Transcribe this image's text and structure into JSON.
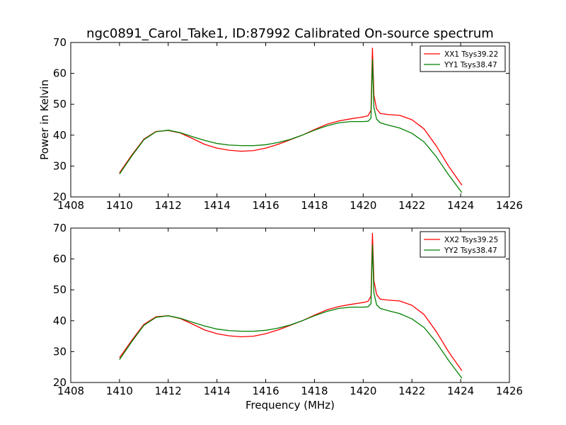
{
  "chart_data": [
    {
      "type": "line",
      "title": "ngc0891_Carol_Take1, ID:87992 Calibrated On-source spectrum",
      "xlabel": "",
      "ylabel": "Power in Kelvin",
      "xlim": [
        1408,
        1426
      ],
      "ylim": [
        20,
        70
      ],
      "xticks": [
        1408,
        1410,
        1412,
        1414,
        1416,
        1418,
        1420,
        1422,
        1424,
        1426
      ],
      "yticks": [
        20,
        30,
        40,
        50,
        60,
        70
      ],
      "legend_position": "top-right",
      "grid": false,
      "series": [
        {
          "name": "XX1 Tsys39.22",
          "color": "#ff0000",
          "x": [
            1410,
            1410.5,
            1411,
            1411.5,
            1412,
            1412.5,
            1413,
            1413.5,
            1414,
            1414.5,
            1415,
            1415.5,
            1416,
            1416.5,
            1417,
            1417.5,
            1418,
            1418.5,
            1419,
            1419.5,
            1420,
            1420.2,
            1420.32,
            1420.38,
            1420.44,
            1420.55,
            1420.7,
            1421,
            1421.5,
            1422,
            1422.5,
            1423,
            1423.5,
            1424.05
          ],
          "y": [
            27.8,
            33.5,
            38.7,
            41.2,
            41.5,
            40.7,
            38.9,
            37.0,
            35.8,
            35.1,
            34.8,
            35.0,
            35.8,
            37.0,
            38.5,
            40.0,
            41.8,
            43.5,
            44.6,
            45.3,
            45.9,
            46.3,
            48.0,
            68.2,
            53.0,
            48.5,
            47.0,
            46.7,
            46.4,
            45.0,
            42.0,
            36.5,
            30.0,
            23.8
          ]
        },
        {
          "name": "YY1 Tsys38.47",
          "color": "#008000",
          "x": [
            1410,
            1410.5,
            1411,
            1411.5,
            1412,
            1412.5,
            1413,
            1413.5,
            1414,
            1414.5,
            1415,
            1415.5,
            1416,
            1416.5,
            1417,
            1417.5,
            1418,
            1418.5,
            1419,
            1419.5,
            1420,
            1420.2,
            1420.32,
            1420.38,
            1420.44,
            1420.55,
            1420.7,
            1421,
            1421.5,
            1422,
            1422.5,
            1423,
            1423.5,
            1424.05
          ],
          "y": [
            27.4,
            33.2,
            38.5,
            41.1,
            41.6,
            40.8,
            39.5,
            38.3,
            37.3,
            36.8,
            36.6,
            36.6,
            36.9,
            37.6,
            38.6,
            40.0,
            41.6,
            43.0,
            44.0,
            44.4,
            44.4,
            44.5,
            45.5,
            64.5,
            49.0,
            45.2,
            44.0,
            43.3,
            42.3,
            40.6,
            37.8,
            33.0,
            27.2,
            21.4
          ]
        }
      ]
    },
    {
      "type": "line",
      "title": "",
      "xlabel": "Frequency (MHz)",
      "ylabel": "",
      "xlim": [
        1408,
        1426
      ],
      "ylim": [
        20,
        70
      ],
      "xticks": [
        1408,
        1410,
        1412,
        1414,
        1416,
        1418,
        1420,
        1422,
        1424,
        1426
      ],
      "yticks": [
        20,
        30,
        40,
        50,
        60,
        70
      ],
      "legend_position": "top-right",
      "grid": false,
      "series": [
        {
          "name": "XX2 Tsys39.25",
          "color": "#ff0000",
          "x": [
            1410,
            1410.5,
            1411,
            1411.5,
            1412,
            1412.5,
            1413,
            1413.5,
            1414,
            1414.5,
            1415,
            1415.5,
            1416,
            1416.5,
            1417,
            1417.5,
            1418,
            1418.5,
            1419,
            1419.5,
            1420,
            1420.2,
            1420.32,
            1420.38,
            1420.44,
            1420.55,
            1420.7,
            1421,
            1421.5,
            1422,
            1422.5,
            1423,
            1423.5,
            1424.05
          ],
          "y": [
            28.0,
            33.6,
            38.8,
            41.3,
            41.6,
            40.7,
            38.9,
            37.0,
            35.8,
            35.1,
            34.8,
            35.0,
            35.8,
            37.0,
            38.5,
            40.0,
            41.8,
            43.5,
            44.6,
            45.3,
            45.9,
            46.3,
            48.0,
            68.3,
            53.0,
            48.5,
            47.0,
            46.7,
            46.4,
            45.0,
            42.0,
            36.5,
            30.0,
            23.8
          ]
        },
        {
          "name": "YY2 Tsys38.47",
          "color": "#008000",
          "x": [
            1410,
            1410.5,
            1411,
            1411.5,
            1412,
            1412.5,
            1413,
            1413.5,
            1414,
            1414.5,
            1415,
            1415.5,
            1416,
            1416.5,
            1417,
            1417.5,
            1418,
            1418.5,
            1419,
            1419.5,
            1420,
            1420.2,
            1420.32,
            1420.38,
            1420.44,
            1420.55,
            1420.7,
            1421,
            1421.5,
            1422,
            1422.5,
            1423,
            1423.5,
            1424.05
          ],
          "y": [
            27.4,
            33.2,
            38.5,
            41.1,
            41.6,
            40.8,
            39.5,
            38.3,
            37.3,
            36.8,
            36.6,
            36.6,
            36.9,
            37.6,
            38.6,
            40.0,
            41.6,
            43.0,
            44.0,
            44.4,
            44.4,
            44.5,
            45.5,
            64.5,
            49.0,
            45.2,
            44.0,
            43.3,
            42.3,
            40.6,
            37.8,
            33.0,
            27.2,
            21.4
          ]
        }
      ]
    }
  ]
}
